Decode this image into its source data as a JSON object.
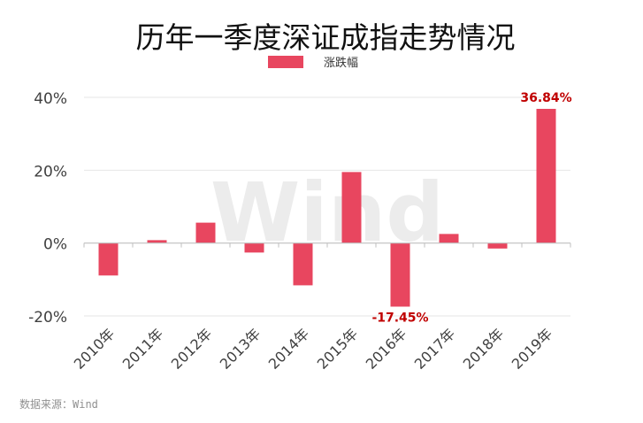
{
  "chart_data": {
    "type": "bar",
    "title": "历年一季度深证成指走势情况",
    "legend": {
      "label": "涨跌幅",
      "position": "top-center",
      "color": "#e8465f"
    },
    "categories": [
      "2010年",
      "2011年",
      "2012年",
      "2013年",
      "2014年",
      "2015年",
      "2016年",
      "2017年",
      "2018年",
      "2019年"
    ],
    "series": [
      {
        "name": "涨跌幅",
        "values": [
          -8.9,
          0.8,
          5.6,
          -2.6,
          -11.6,
          19.5,
          -17.45,
          2.5,
          -1.5,
          36.84
        ],
        "color": "#e8465f"
      }
    ],
    "y_unit": "%",
    "ylim": [
      -20,
      40
    ],
    "yticks": [
      "40%",
      "20%",
      "0%",
      "-20%"
    ],
    "data_labels": [
      {
        "category": "2016年",
        "text": "-17.45%"
      },
      {
        "category": "2019年",
        "text": "36.84%"
      }
    ],
    "data_label_color": "#c00000",
    "grid": true,
    "watermark": "Wind",
    "source": "数据来源：Wind"
  }
}
